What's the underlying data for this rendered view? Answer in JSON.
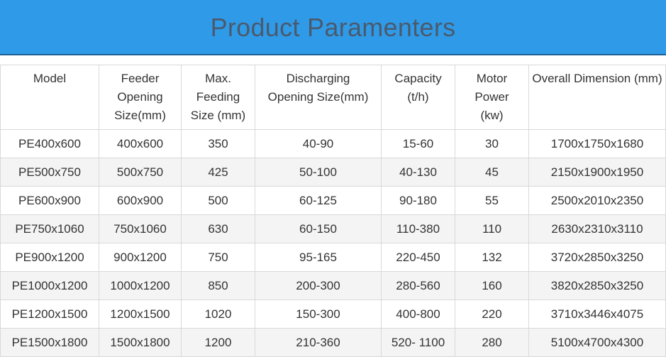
{
  "banner": {
    "title": "Product Paramenters"
  },
  "table": {
    "headers": [
      "Model",
      "Feeder Opening Size(mm)",
      "Max. Feeding Size (mm)",
      "Discharging Opening Size(mm)",
      "Capacity (t/h)",
      "Motor Power (kw)",
      "Overall Dimension (mm)"
    ],
    "rows": [
      [
        "PE400x600",
        "400x600",
        "350",
        "40-90",
        "15-60",
        "30",
        "1700x1750x1680"
      ],
      [
        "PE500x750",
        "500x750",
        "425",
        "50-100",
        "40-130",
        "45",
        "2150x1900x1950"
      ],
      [
        "PE600x900",
        "600x900",
        "500",
        "60-125",
        "90-180",
        "55",
        "2500x2010x2350"
      ],
      [
        "PE750x1060",
        "750x1060",
        "630",
        "60-150",
        "110-380",
        "110",
        "2630x2310x3110"
      ],
      [
        "PE900x1200",
        "900x1200",
        "750",
        "95-165",
        "220-450",
        "132",
        "3720x2850x3250"
      ],
      [
        "PE1000x1200",
        "1000x1200",
        "850",
        "200-300",
        "280-560",
        "160",
        "3820x2850x3250"
      ],
      [
        "PE1200x1500",
        "1200x1500",
        "1020",
        "150-300",
        "400-800",
        "220",
        "3710x3446x4075"
      ],
      [
        "PE1500x1800",
        "1500x1800",
        "1200",
        "210-360",
        "520- 1100",
        "280",
        "5100x4700x4300"
      ]
    ]
  }
}
